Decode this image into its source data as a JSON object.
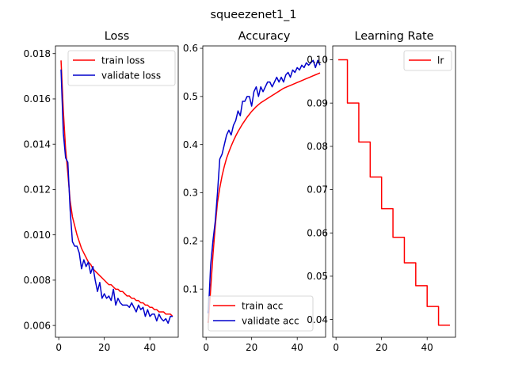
{
  "suptitle": "squeezenet1_1",
  "chart_data": [
    {
      "type": "line",
      "title": "Loss",
      "xlim": [
        -1.45,
        52.45
      ],
      "ylim": [
        0.00548,
        0.01834
      ],
      "xticks": [
        0,
        20,
        40
      ],
      "yticks": [
        0.006,
        0.008,
        0.01,
        0.012,
        0.014,
        0.016,
        0.018
      ],
      "ytick_labels": [
        "0.006",
        "0.008",
        "0.010",
        "0.012",
        "0.014",
        "0.016",
        "0.018"
      ],
      "legend_location": "upper right",
      "series": [
        {
          "name": "train loss",
          "color": "#ff0000",
          "x": [
            1,
            2,
            3,
            4,
            5,
            6,
            7,
            8,
            9,
            10,
            11,
            12,
            13,
            14,
            15,
            16,
            17,
            18,
            19,
            20,
            21,
            22,
            23,
            24,
            25,
            26,
            27,
            28,
            29,
            30,
            31,
            32,
            33,
            34,
            35,
            36,
            37,
            38,
            39,
            40,
            41,
            42,
            43,
            44,
            45,
            46,
            47,
            48,
            49,
            50
          ],
          "y": [
            0.0177,
            0.0155,
            0.0138,
            0.0127,
            0.0115,
            0.0108,
            0.0104,
            0.01,
            0.0097,
            0.0094,
            0.0092,
            0.009,
            0.0088,
            0.0087,
            0.0085,
            0.0084,
            0.0083,
            0.0082,
            0.0081,
            0.008,
            0.0079,
            0.0078,
            0.0078,
            0.0077,
            0.0076,
            0.0076,
            0.0075,
            0.0075,
            0.0074,
            0.0073,
            0.0073,
            0.0072,
            0.0072,
            0.0071,
            0.0071,
            0.007,
            0.007,
            0.0069,
            0.0069,
            0.0068,
            0.0068,
            0.0067,
            0.0067,
            0.0066,
            0.0066,
            0.0066,
            0.0065,
            0.0065,
            0.0065,
            0.0064
          ]
        },
        {
          "name": "validate loss",
          "color": "#0000cc",
          "x": [
            1,
            2,
            3,
            4,
            5,
            6,
            7,
            8,
            9,
            10,
            11,
            12,
            13,
            14,
            15,
            16,
            17,
            18,
            19,
            20,
            21,
            22,
            23,
            24,
            25,
            26,
            27,
            28,
            29,
            30,
            31,
            32,
            33,
            34,
            35,
            36,
            37,
            38,
            39,
            40,
            41,
            42,
            43,
            44,
            45,
            46,
            47,
            48,
            49,
            50
          ],
          "y": [
            0.0173,
            0.0145,
            0.0134,
            0.0132,
            0.0111,
            0.0097,
            0.0095,
            0.0095,
            0.0092,
            0.0085,
            0.0089,
            0.0086,
            0.0088,
            0.0083,
            0.0086,
            0.008,
            0.0075,
            0.0079,
            0.0072,
            0.0074,
            0.0072,
            0.0073,
            0.0071,
            0.0076,
            0.0069,
            0.0072,
            0.007,
            0.0069,
            0.0069,
            0.0069,
            0.0068,
            0.007,
            0.0068,
            0.0066,
            0.0069,
            0.0067,
            0.0068,
            0.0064,
            0.0067,
            0.0064,
            0.0065,
            0.0065,
            0.0062,
            0.0065,
            0.0063,
            0.0062,
            0.0063,
            0.0061,
            0.0064,
            0.0064
          ]
        }
      ]
    },
    {
      "type": "line",
      "title": "Accuracy",
      "xlim": [
        -1.45,
        52.45
      ],
      "ylim": [
        0.0,
        0.605
      ],
      "xticks": [
        0,
        20,
        40
      ],
      "yticks": [
        0.1,
        0.2,
        0.3,
        0.4,
        0.5,
        0.6
      ],
      "ytick_labels": [
        "0.1",
        "0.2",
        "0.3",
        "0.4",
        "0.5",
        "0.6"
      ],
      "legend_location": "lower right",
      "series": [
        {
          "name": "train acc",
          "color": "#ff0000",
          "x": [
            1,
            2,
            3,
            4,
            5,
            6,
            7,
            8,
            9,
            10,
            11,
            12,
            13,
            14,
            15,
            16,
            17,
            18,
            19,
            20,
            21,
            22,
            23,
            24,
            25,
            26,
            27,
            28,
            29,
            30,
            31,
            32,
            33,
            34,
            35,
            36,
            37,
            38,
            39,
            40,
            41,
            42,
            43,
            44,
            45,
            46,
            47,
            48,
            49,
            50
          ],
          "y": [
            0.03,
            0.1,
            0.17,
            0.23,
            0.28,
            0.31,
            0.335,
            0.355,
            0.372,
            0.385,
            0.397,
            0.408,
            0.418,
            0.427,
            0.435,
            0.443,
            0.45,
            0.457,
            0.463,
            0.469,
            0.474,
            0.479,
            0.483,
            0.487,
            0.49,
            0.493,
            0.496,
            0.499,
            0.502,
            0.505,
            0.508,
            0.511,
            0.514,
            0.517,
            0.519,
            0.521,
            0.523,
            0.525,
            0.527,
            0.529,
            0.531,
            0.533,
            0.535,
            0.537,
            0.539,
            0.541,
            0.543,
            0.545,
            0.547,
            0.549
          ]
        },
        {
          "name": "validate acc",
          "color": "#0000cc",
          "x": [
            1,
            2,
            3,
            4,
            5,
            6,
            7,
            8,
            9,
            10,
            11,
            12,
            13,
            14,
            15,
            16,
            17,
            18,
            19,
            20,
            21,
            22,
            23,
            24,
            25,
            26,
            27,
            28,
            29,
            30,
            31,
            32,
            33,
            34,
            35,
            36,
            37,
            38,
            39,
            40,
            41,
            42,
            43,
            44,
            45,
            46,
            47,
            48,
            49,
            50
          ],
          "y": [
            0.05,
            0.15,
            0.2,
            0.24,
            0.3,
            0.37,
            0.38,
            0.4,
            0.42,
            0.43,
            0.42,
            0.44,
            0.45,
            0.47,
            0.46,
            0.49,
            0.49,
            0.5,
            0.5,
            0.48,
            0.51,
            0.52,
            0.5,
            0.52,
            0.51,
            0.52,
            0.53,
            0.53,
            0.52,
            0.53,
            0.54,
            0.53,
            0.54,
            0.53,
            0.545,
            0.55,
            0.54,
            0.555,
            0.55,
            0.56,
            0.555,
            0.565,
            0.56,
            0.57,
            0.565,
            0.57,
            0.575,
            0.56,
            0.575,
            0.565
          ]
        }
      ]
    },
    {
      "type": "line",
      "title": "Learning Rate",
      "xlim": [
        -1.45,
        52.45
      ],
      "ylim": [
        0.0359,
        0.1032
      ],
      "xticks": [
        0,
        20,
        40
      ],
      "yticks": [
        0.04,
        0.05,
        0.06,
        0.07,
        0.08,
        0.09,
        0.1
      ],
      "ytick_labels": [
        "0.04",
        "0.05",
        "0.06",
        "0.07",
        "0.08",
        "0.09",
        "0.10"
      ],
      "legend_location": "upper right",
      "series": [
        {
          "name": "lr",
          "color": "#ff0000",
          "step": true,
          "x": [
            1,
            5,
            5,
            10,
            10,
            15,
            15,
            20,
            20,
            25,
            25,
            30,
            30,
            35,
            35,
            40,
            40,
            45,
            45,
            50
          ],
          "y": [
            0.1,
            0.1,
            0.09,
            0.09,
            0.081,
            0.081,
            0.0729,
            0.0729,
            0.0656,
            0.0656,
            0.059,
            0.059,
            0.0531,
            0.0531,
            0.0478,
            0.0478,
            0.043,
            0.043,
            0.0387,
            0.0387
          ]
        }
      ]
    }
  ]
}
